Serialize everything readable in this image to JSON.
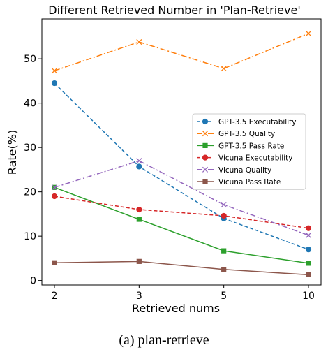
{
  "chart_data": {
    "type": "line",
    "title": "Different Retrieved Number in 'Plan-Retrieve'",
    "xlabel": "Retrieved nums",
    "ylabel": "Rate(%)",
    "categories": [
      "2",
      "3",
      "5",
      "10"
    ],
    "ylim": [
      -1,
      59
    ],
    "yticks": [
      0,
      10,
      20,
      30,
      40,
      50
    ],
    "grid": false,
    "legend_position": "center-right",
    "series": [
      {
        "name": "GPT-3.5 Executability",
        "values": [
          44.5,
          25.7,
          14.0,
          7.0
        ],
        "color": "#1f77b4",
        "line": "dashed",
        "marker": "circle"
      },
      {
        "name": "GPT-3.5 Quality",
        "values": [
          47.3,
          53.8,
          47.8,
          55.7
        ],
        "color": "#ff7f0e",
        "line": "dashdot",
        "marker": "x"
      },
      {
        "name": "GPT-3.5 Pass Rate",
        "values": [
          21.0,
          13.8,
          6.7,
          3.9
        ],
        "color": "#2ca02c",
        "line": "solid",
        "marker": "square"
      },
      {
        "name": "Vicuna Executability",
        "values": [
          19.0,
          16.0,
          14.6,
          11.8
        ],
        "color": "#d62728",
        "line": "dashed",
        "marker": "circle"
      },
      {
        "name": "Vicuna Quality",
        "values": [
          21.0,
          27.0,
          17.1,
          10.2
        ],
        "color": "#9467bd",
        "line": "dashdot",
        "marker": "x"
      },
      {
        "name": "Vicuna Pass Rate",
        "values": [
          4.0,
          4.3,
          2.5,
          1.3
        ],
        "color": "#8c564b",
        "line": "solid",
        "marker": "square"
      }
    ]
  },
  "caption": "(a) plan-retrieve"
}
